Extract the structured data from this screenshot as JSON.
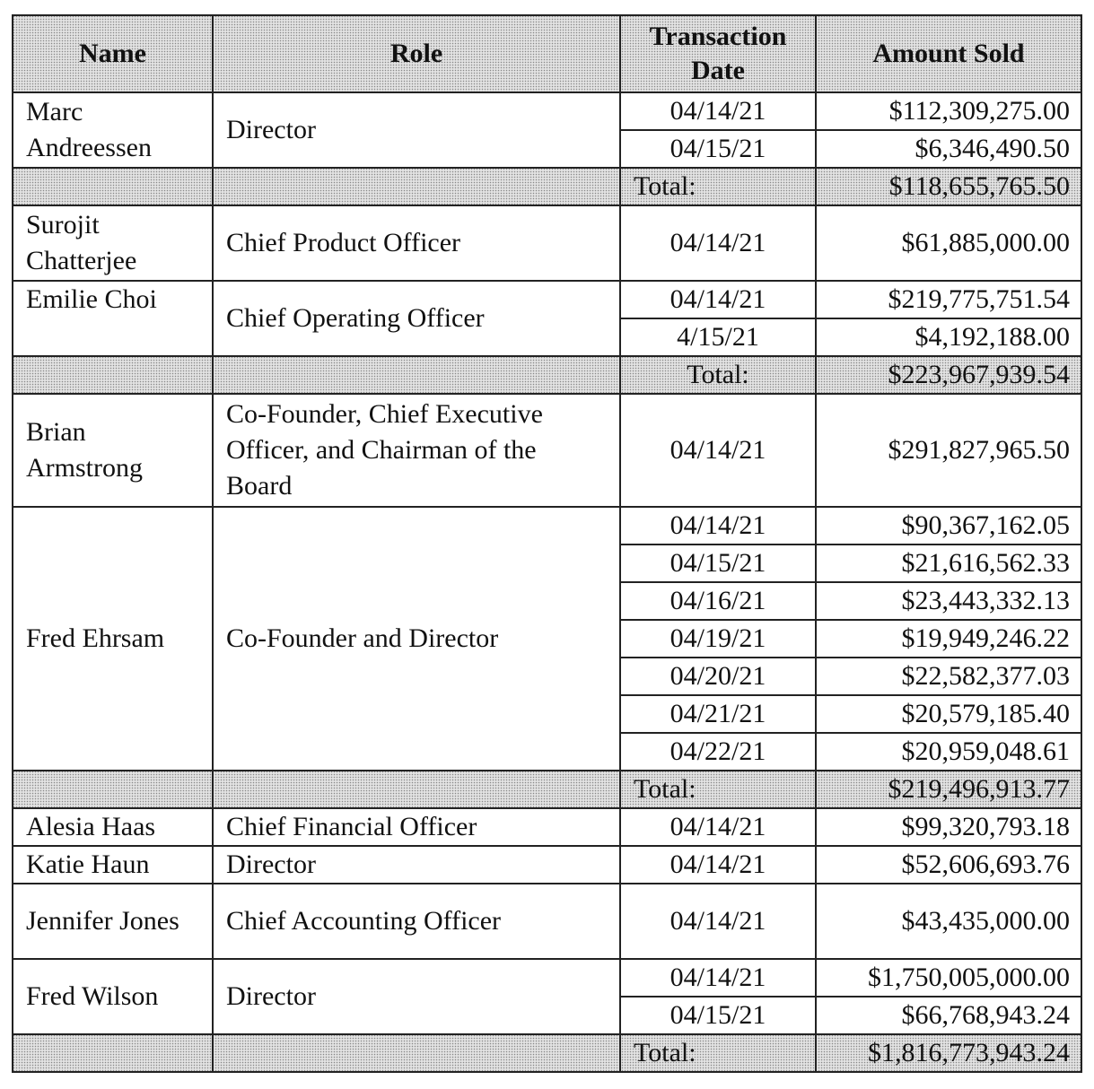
{
  "header": {
    "name": "Name",
    "role": "Role",
    "date": "Transaction Date",
    "amount": "Amount Sold"
  },
  "total_label": "Total:",
  "groups": [
    {
      "name": "Marc Andreessen",
      "role": "Director",
      "entries": [
        {
          "date": "04/14/21",
          "amount": "$112,309,275.00"
        },
        {
          "date": "04/15/21",
          "amount": "$6,346,490.50"
        }
      ],
      "total": "$118,655,765.50"
    },
    {
      "name": "Surojit Chatterjee",
      "role": "Chief Product Officer",
      "entries": [
        {
          "date": "04/14/21",
          "amount": "$61,885,000.00"
        }
      ]
    },
    {
      "name": "Emilie Choi",
      "role": "Chief Operating Officer",
      "entries": [
        {
          "date": "04/14/21",
          "amount": "$219,775,751.54"
        },
        {
          "date": "4/15/21",
          "amount": "$4,192,188.00"
        }
      ],
      "total": "$223,967,939.54"
    },
    {
      "name": "Brian Armstrong",
      "role": "Co-Founder, Chief Executive Officer, and Chairman of the Board",
      "entries": [
        {
          "date": "04/14/21",
          "amount": "$291,827,965.50"
        }
      ]
    },
    {
      "name": "Fred Ehrsam",
      "role": "Co-Founder and Director",
      "entries": [
        {
          "date": "04/14/21",
          "amount": "$90,367,162.05"
        },
        {
          "date": "04/15/21",
          "amount": "$21,616,562.33"
        },
        {
          "date": "04/16/21",
          "amount": "$23,443,332.13"
        },
        {
          "date": "04/19/21",
          "amount": "$19,949,246.22"
        },
        {
          "date": "04/20/21",
          "amount": "$22,582,377.03"
        },
        {
          "date": "04/21/21",
          "amount": "$20,579,185.40"
        },
        {
          "date": "04/22/21",
          "amount": "$20,959,048.61"
        }
      ],
      "total": "$219,496,913.77"
    },
    {
      "name": "Alesia Haas",
      "role": "Chief Financial Officer",
      "entries": [
        {
          "date": "04/14/21",
          "amount": "$99,320,793.18"
        }
      ]
    },
    {
      "name": "Katie Haun",
      "role": "Director",
      "entries": [
        {
          "date": "04/14/21",
          "amount": "$52,606,693.76"
        }
      ]
    },
    {
      "name": "Jennifer Jones",
      "role": "Chief Accounting Officer",
      "entries": [
        {
          "date": "04/14/21",
          "amount": "$43,435,000.00"
        }
      ]
    },
    {
      "name": "Fred Wilson",
      "role": "Director",
      "entries": [
        {
          "date": "04/14/21",
          "amount": "$1,750,005,000.00"
        },
        {
          "date": "04/15/21",
          "amount": "$66,768,943.24"
        }
      ],
      "total": "$1,816,773,943.24"
    }
  ]
}
